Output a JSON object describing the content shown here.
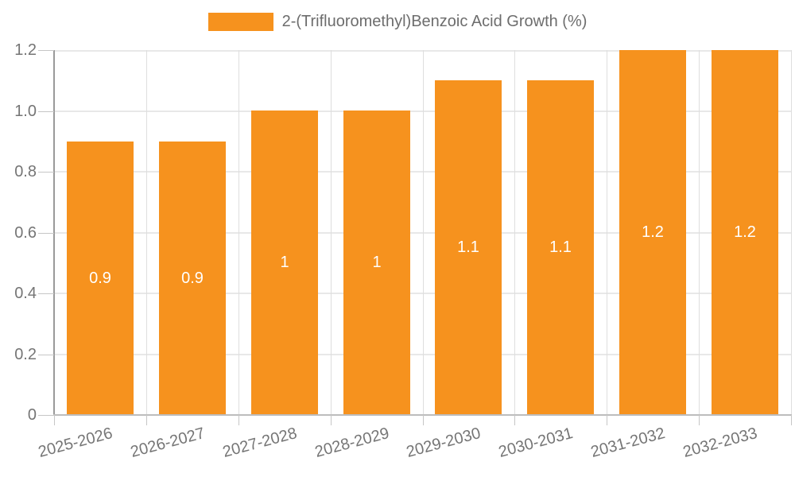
{
  "chart_data": {
    "type": "bar",
    "title": "",
    "legend_position": "top-center",
    "categories": [
      "2025-2026",
      "2026-2027",
      "2027-2028",
      "2028-2029",
      "2029-2030",
      "2030-2031",
      "2031-2032",
      "2032-2033"
    ],
    "series": [
      {
        "name": "2-(Trifluoromethyl)Benzoic Acid Growth (%)",
        "values": [
          0.9,
          0.9,
          1,
          1,
          1.1,
          1.1,
          1.2,
          1.2
        ],
        "value_labels": [
          "0.9",
          "0.9",
          "1",
          "1",
          "1.1",
          "1.1",
          "1.2",
          "1.2"
        ],
        "color": "#F6921E"
      }
    ],
    "xlabel": "",
    "ylabel": "",
    "ylim": [
      0,
      1.2
    ],
    "yticks": [
      0,
      0.2,
      0.4,
      0.6,
      0.8,
      1.0,
      1.2
    ],
    "ytick_labels": [
      "0",
      "0.2",
      "0.4",
      "0.6",
      "0.8",
      "1.0",
      "1.2"
    ],
    "grid": true,
    "x_label_rotation_deg": -15,
    "colors": {
      "bar": "#F6921E",
      "value_label": "#FFFFFF",
      "axis_text": "#757575",
      "legend_text": "#6D6D6D",
      "grid_line": "#E8E8E8",
      "grid_line_v": "#DEDEDE",
      "tick": "#C6C6C6",
      "y_axis_line": "#9A9A9A",
      "x_axis_line": "#BDBDBD",
      "background": "#FFFFFF"
    }
  }
}
